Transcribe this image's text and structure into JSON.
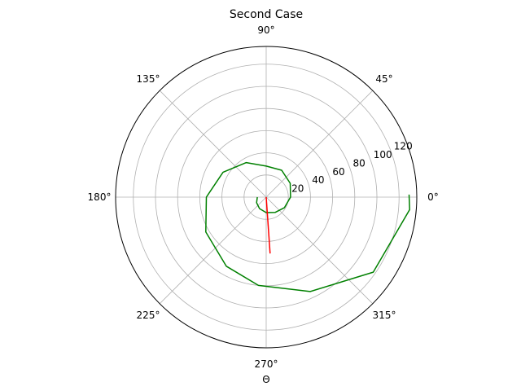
{
  "chart_data": {
    "type": "polar-line",
    "title": "Second Case",
    "xlabel": "Θ",
    "angle_ticks": [
      "0°",
      "45°",
      "90°",
      "135°",
      "180°",
      "225°",
      "270°",
      "315°"
    ],
    "angle_tick_degrees": [
      0,
      45,
      90,
      135,
      180,
      225,
      270,
      315
    ],
    "r_ticks": [
      "20",
      "40",
      "60",
      "80",
      "100",
      "120"
    ],
    "r_tick_values": [
      20,
      40,
      60,
      80,
      100,
      120
    ],
    "r_lim": [
      0,
      136
    ],
    "r_label_angle_deg": 22.5,
    "grid": true,
    "series": [
      {
        "color": "#008000",
        "points": [
          {
            "theta_deg": 180,
            "r": 8
          },
          {
            "theta_deg": 210,
            "r": 10
          },
          {
            "theta_deg": 240,
            "r": 12
          },
          {
            "theta_deg": 270,
            "r": 14
          },
          {
            "theta_deg": 300,
            "r": 16
          },
          {
            "theta_deg": 330,
            "r": 19
          },
          {
            "theta_deg": 0,
            "r": 22
          },
          {
            "theta_deg": 30,
            "r": 25
          },
          {
            "theta_deg": 60,
            "r": 28
          },
          {
            "theta_deg": 90,
            "r": 28
          },
          {
            "theta_deg": 120,
            "r": 36
          },
          {
            "theta_deg": 150,
            "r": 45
          },
          {
            "theta_deg": 180,
            "r": 54
          },
          {
            "theta_deg": 210,
            "r": 63
          },
          {
            "theta_deg": 240,
            "r": 72
          },
          {
            "theta_deg": 265,
            "r": 80
          },
          {
            "theta_deg": 295,
            "r": 94
          },
          {
            "theta_deg": 325,
            "r": 118
          },
          {
            "theta_deg": 355,
            "r": 130
          },
          {
            "theta_deg": 1,
            "r": 129
          }
        ]
      },
      {
        "color": "#ff0000",
        "points": [
          {
            "theta_deg": 0,
            "r": 0
          },
          {
            "theta_deg": 274,
            "r": 51
          }
        ]
      }
    ]
  }
}
